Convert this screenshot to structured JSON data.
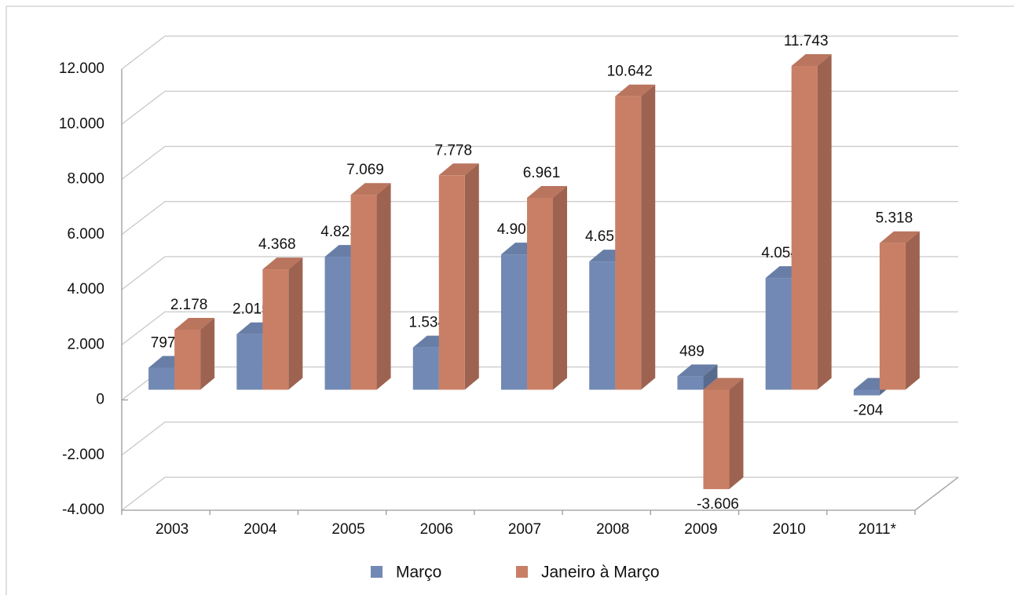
{
  "chart_data": {
    "type": "bar3d",
    "categories": [
      "2003",
      "2004",
      "2005",
      "2006",
      "2007",
      "2008",
      "2009",
      "2010",
      "2011*"
    ],
    "series": [
      {
        "name": "Março",
        "color": "#7189b4",
        "values": [
          797,
          2015,
          4823,
          1534,
          4907,
          4651,
          489,
          4054,
          -204
        ],
        "value_labels": [
          "797",
          "2.015",
          "4.823",
          "1.534",
          "4.907",
          "4.651",
          "489",
          "4.054",
          "-204"
        ]
      },
      {
        "name": "Janeiro à Março",
        "color": "#c97f66",
        "values": [
          2178,
          4368,
          7069,
          7778,
          6961,
          10642,
          -3606,
          11743,
          5318
        ],
        "value_labels": [
          "2.178",
          "4.368",
          "7.069",
          "7.778",
          "6.961",
          "10.642",
          "-3.606",
          "11.743",
          "5.318"
        ]
      }
    ],
    "ylim": [
      -4000,
      12000
    ],
    "yticks": [
      {
        "value": -4000,
        "label": "-4.000"
      },
      {
        "value": -2000,
        "label": "-2.000"
      },
      0,
      {
        "value": 2000,
        "label": "2.000"
      },
      {
        "value": 4000,
        "label": "4.000"
      },
      {
        "value": 6000,
        "label": "6.000"
      },
      {
        "value": 8000,
        "label": "8.000"
      },
      {
        "value": 10000,
        "label": "10.000"
      },
      {
        "value": 12000,
        "label": "12.000"
      }
    ],
    "grid": true,
    "legend": "bottom"
  }
}
